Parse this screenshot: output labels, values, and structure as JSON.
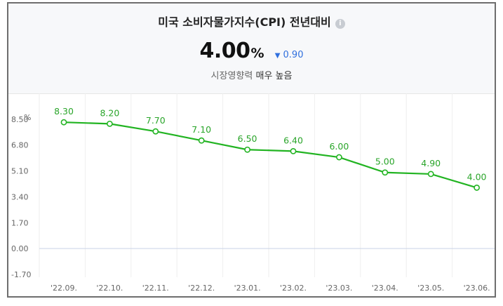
{
  "header": {
    "title": "미국 소비자물가지수(CPI) 전년대비",
    "info_icon": "info-icon",
    "value": "4.00",
    "unit": "%",
    "change_arrow": "▼",
    "change_value": "0.90",
    "change_color": "#2f6fde",
    "impact_label": "시장영향력",
    "impact_value": "매우 높음"
  },
  "chart_data": {
    "type": "line",
    "title": "",
    "ylabel": "%",
    "xlabel": "",
    "ylim": [
      -1.7,
      10.2
    ],
    "yticks": [
      "8.50",
      "6.80",
      "5.10",
      "3.40",
      "1.70",
      "0.00",
      "-1.70"
    ],
    "categories": [
      "'22.09.",
      "'22.10.",
      "'22.11.",
      "'22.12.",
      "'23.01.",
      "'23.02.",
      "'23.03.",
      "'23.04.",
      "'23.05.",
      "'23.06."
    ],
    "series": [
      {
        "values": [
          8.3,
          8.2,
          7.7,
          7.1,
          6.5,
          6.4,
          6.0,
          5.0,
          4.9,
          4.0
        ],
        "labels": [
          "8.30",
          "8.20",
          "7.70",
          "7.10",
          "6.50",
          "6.40",
          "6.00",
          "5.00",
          "4.90",
          "4.00"
        ],
        "color": "#22b422"
      }
    ],
    "zero_line_color": "#c9d3e6",
    "grid": "vertical"
  }
}
